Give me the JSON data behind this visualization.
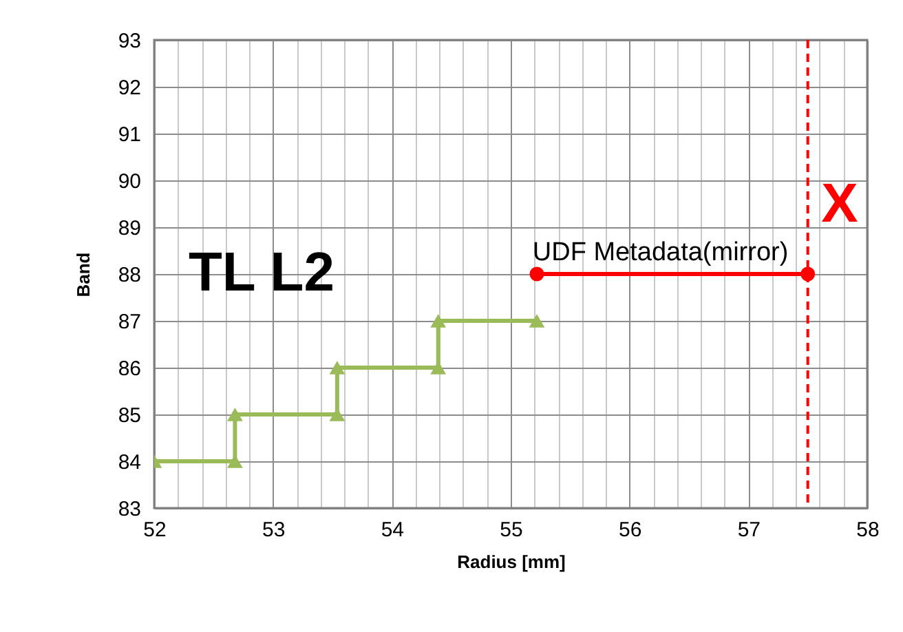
{
  "chart_data": {
    "type": "line",
    "xlabel": "Radius [mm]",
    "ylabel": "Band",
    "xlim": [
      52,
      58
    ],
    "ylim": [
      83,
      93
    ],
    "xticks": [
      52,
      {
        "value": 52.2,
        "label": null
      },
      {
        "value": 52.4,
        "label": null
      },
      {
        "value": 52.6,
        "label": null
      },
      {
        "value": 52.8,
        "label": null
      },
      53,
      {
        "value": 53.2,
        "label": null
      },
      {
        "value": 53.4,
        "label": null
      },
      {
        "value": 53.6,
        "label": null
      },
      {
        "value": 53.8,
        "label": null
      },
      54,
      {
        "value": 54.2,
        "label": null
      },
      {
        "value": 54.4,
        "label": null
      },
      {
        "value": 54.6,
        "label": null
      },
      {
        "value": 54.8,
        "label": null
      },
      55,
      {
        "value": 55.2,
        "label": null
      },
      {
        "value": 55.4,
        "label": null
      },
      {
        "value": 55.6,
        "label": null
      },
      {
        "value": 55.8,
        "label": null
      },
      56,
      {
        "value": 56.2,
        "label": null
      },
      {
        "value": 56.4,
        "label": null
      },
      {
        "value": 56.6,
        "label": null
      },
      {
        "value": 56.8,
        "label": null
      },
      57,
      {
        "value": 57.2,
        "label": null
      },
      {
        "value": 57.4,
        "label": null
      },
      {
        "value": 57.6,
        "label": null
      },
      {
        "value": 57.8,
        "label": null
      },
      58
    ],
    "yticks": [
      83,
      84,
      85,
      86,
      87,
      88,
      89,
      90,
      91,
      92,
      93
    ],
    "grid": true,
    "series": [
      {
        "color": "#9bbb59",
        "marker": "triangle",
        "x": [
          52,
          52.68,
          52.68,
          53.54,
          53.54,
          54.39,
          54.39,
          55.22
        ],
        "values": [
          84,
          84,
          85,
          85,
          86,
          86,
          87,
          87
        ]
      },
      {
        "color": "#ff0000",
        "marker": "circle",
        "x": [
          55.22,
          57.5
        ],
        "values": [
          88,
          88
        ]
      }
    ],
    "ref_lines": [
      {
        "axis": "x",
        "value": 57.5,
        "color": "#ff0000",
        "line_style": "dashed"
      }
    ],
    "annotations": [
      "TL L2",
      "X",
      {
        "text": "UDF Metadata(mirror)",
        "x": 56.26,
        "y": 88
      }
    ]
  }
}
